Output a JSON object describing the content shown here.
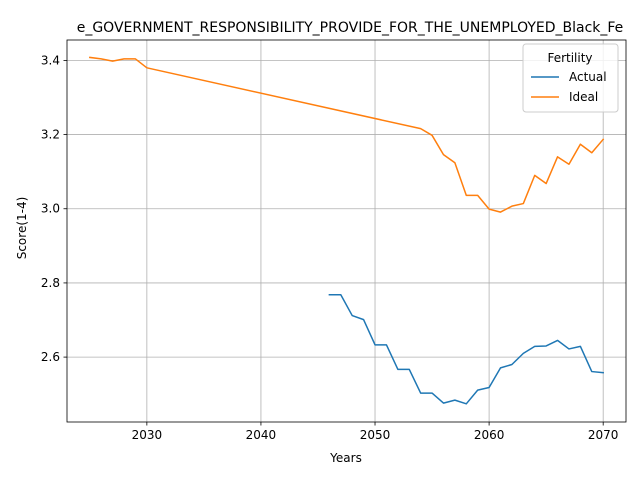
{
  "chart_data": {
    "type": "line",
    "title": "e_GOVERNMENT_RESPONSIBILITY_PROVIDE_FOR_THE_UNEMPLOYED_Black_Fe",
    "xlabel": "Years",
    "ylabel": "Score(1-4)",
    "xlim": [
      2023,
      2072
    ],
    "ylim": [
      2.425,
      3.455
    ],
    "x_ticks": [
      2030,
      2040,
      2050,
      2060,
      2070
    ],
    "y_ticks": [
      2.6,
      2.8,
      3.0,
      3.2,
      3.4
    ],
    "x_tick_labels": [
      "2030",
      "2040",
      "2050",
      "2060",
      "2070"
    ],
    "y_tick_labels": [
      "2.6",
      "2.8",
      "3.0",
      "3.2",
      "3.4"
    ],
    "grid": true,
    "legend": {
      "title": "Fertility",
      "position": "top-right"
    },
    "series": [
      {
        "name": "Actual",
        "color": "#1f77b4",
        "points": [
          [
            2046,
            2.768
          ],
          [
            2047,
            2.768
          ],
          [
            2048,
            2.712
          ],
          [
            2049,
            2.701
          ],
          [
            2050,
            2.633
          ],
          [
            2051,
            2.633
          ],
          [
            2052,
            2.567
          ],
          [
            2053,
            2.567
          ],
          [
            2054,
            2.503
          ],
          [
            2055,
            2.503
          ],
          [
            2056,
            2.476
          ],
          [
            2057,
            2.484
          ],
          [
            2058,
            2.474
          ],
          [
            2059,
            2.511
          ],
          [
            2060,
            2.518
          ],
          [
            2061,
            2.571
          ],
          [
            2062,
            2.58
          ],
          [
            2063,
            2.61
          ],
          [
            2064,
            2.629
          ],
          [
            2065,
            2.63
          ],
          [
            2066,
            2.645
          ],
          [
            2067,
            2.622
          ],
          [
            2068,
            2.629
          ],
          [
            2069,
            2.561
          ],
          [
            2070,
            2.558
          ]
        ]
      },
      {
        "name": "Ideal",
        "color": "#ff7f0e",
        "points": [
          [
            2025,
            3.408
          ],
          [
            2026,
            3.404
          ],
          [
            2027,
            3.398
          ],
          [
            2028,
            3.404
          ],
          [
            2029,
            3.404
          ],
          [
            2030,
            3.38
          ],
          [
            2054,
            3.216
          ],
          [
            2055,
            3.198
          ],
          [
            2056,
            3.146
          ],
          [
            2057,
            3.124
          ],
          [
            2058,
            3.036
          ],
          [
            2059,
            3.036
          ],
          [
            2060,
            2.999
          ],
          [
            2061,
            2.991
          ],
          [
            2062,
            3.007
          ],
          [
            2063,
            3.014
          ],
          [
            2064,
            3.09
          ],
          [
            2065,
            3.068
          ],
          [
            2066,
            3.14
          ],
          [
            2067,
            3.12
          ],
          [
            2068,
            3.174
          ],
          [
            2069,
            3.151
          ],
          [
            2070,
            3.187
          ]
        ]
      }
    ]
  }
}
